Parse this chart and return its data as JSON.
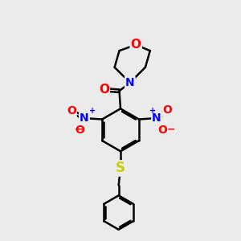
{
  "background_color": "#ebebeb",
  "bond_color": "#000000",
  "bond_width": 1.8,
  "atom_colors": {
    "O": "#ff0000",
    "N": "#0000ff",
    "S": "#cccc00",
    "C": "#000000"
  },
  "font_size_atom": 10,
  "fig_size": [
    3.0,
    3.0
  ],
  "dpi": 100
}
